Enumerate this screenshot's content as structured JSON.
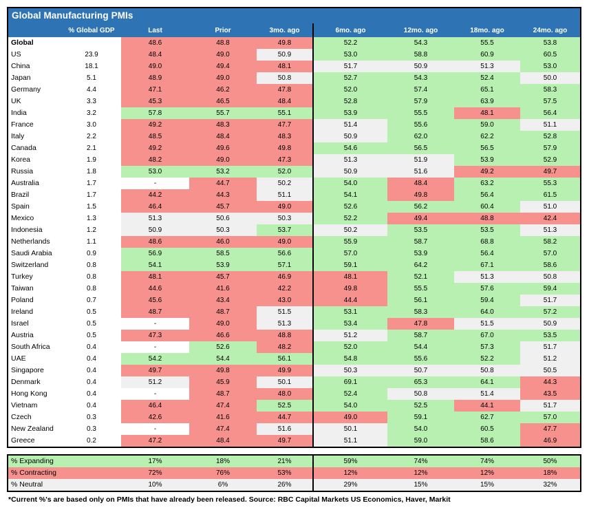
{
  "colors": {
    "header_blue": "#2e74b5",
    "expanding_green": "#b7f0b1",
    "contracting_red": "#f7918e",
    "neutral_gray": "#f0f0f0",
    "no_data_white": "#ffffff",
    "border_black": "#000000",
    "header_text": "#ffffff"
  },
  "chart_data": {
    "type": "heatmap",
    "title": "Global Manufacturing PMIs",
    "header_cells": [
      "",
      "% Global GDP",
      "Last",
      "Prior",
      "3mo. ago",
      "6mo. ago",
      "12mo. ago",
      "18mo. ago",
      "24mo. ago"
    ],
    "thresholds": {
      "expanding_min": 52.0,
      "contracting_below": 50.0,
      "neutral_range": "50.0-51.9",
      "no_data_marker": "-"
    },
    "rows": [
      {
        "country": "Global",
        "gdp": "",
        "bold": true,
        "values": [
          "48.6",
          "48.8",
          "49.8",
          "52.2",
          "54.3",
          "55.5",
          "53.8"
        ]
      },
      {
        "country": "US",
        "gdp": "23.9",
        "values": [
          "48.4",
          "49.0",
          "50.9",
          "53.0",
          "58.8",
          "60.9",
          "60.5"
        ]
      },
      {
        "country": "China",
        "gdp": "18.1",
        "values": [
          "49.0",
          "49.4",
          "48.1",
          "51.7",
          "50.9",
          "51.3",
          "53.0"
        ]
      },
      {
        "country": "Japan",
        "gdp": "5.1",
        "values": [
          "48.9",
          "49.0",
          "50.8",
          "52.7",
          "54.3",
          "52.4",
          "50.0"
        ]
      },
      {
        "country": "Germany",
        "gdp": "4.4",
        "values": [
          "47.1",
          "46.2",
          "47.8",
          "52.0",
          "57.4",
          "65.1",
          "58.3"
        ]
      },
      {
        "country": "UK",
        "gdp": "3.3",
        "values": [
          "45.3",
          "46.5",
          "48.4",
          "52.8",
          "57.9",
          "63.9",
          "57.5"
        ]
      },
      {
        "country": "India",
        "gdp": "3.2",
        "values": [
          "57.8",
          "55.7",
          "55.1",
          "53.9",
          "55.5",
          "48.1",
          "56.4"
        ]
      },
      {
        "country": "France",
        "gdp": "3.0",
        "values": [
          "49.2",
          "48.3",
          "47.7",
          "51.4",
          "55.6",
          "59.0",
          "51.1"
        ]
      },
      {
        "country": "Italy",
        "gdp": "2.2",
        "values": [
          "48.5",
          "48.4",
          "48.3",
          "50.9",
          "62.0",
          "62.2",
          "52.8"
        ]
      },
      {
        "country": "Canada",
        "gdp": "2.1",
        "values": [
          "49.2",
          "49.6",
          "49.8",
          "54.6",
          "56.5",
          "56.5",
          "57.9"
        ]
      },
      {
        "country": "Korea",
        "gdp": "1.9",
        "values": [
          "48.2",
          "49.0",
          "47.3",
          "51.3",
          "51.9",
          "53.9",
          "52.9"
        ]
      },
      {
        "country": "Russia",
        "gdp": "1.8",
        "values": [
          "53.0",
          "53.2",
          "52.0",
          "50.9",
          "51.6",
          "49.2",
          "49.7"
        ]
      },
      {
        "country": "Australia",
        "gdp": "1.7",
        "values": [
          "-",
          "44.7",
          "50.2",
          "54.0",
          "48.4",
          "63.2",
          "55.3"
        ]
      },
      {
        "country": "Brazil",
        "gdp": "1.7",
        "values": [
          "44.2",
          "44.3",
          "51.1",
          "54.1",
          "49.8",
          "56.4",
          "61.5"
        ]
      },
      {
        "country": "Spain",
        "gdp": "1.5",
        "values": [
          "46.4",
          "45.7",
          "49.0",
          "52.6",
          "56.2",
          "60.4",
          "51.0"
        ]
      },
      {
        "country": "Mexico",
        "gdp": "1.3",
        "values": [
          "51.3",
          "50.6",
          "50.3",
          "52.2",
          "49.4",
          "48.8",
          "42.4"
        ]
      },
      {
        "country": "Indonesia",
        "gdp": "1.2",
        "values": [
          "50.9",
          "50.3",
          "53.7",
          "50.2",
          "53.5",
          "53.5",
          "51.3"
        ]
      },
      {
        "country": "Netherlands",
        "gdp": "1.1",
        "values": [
          "48.6",
          "46.0",
          "49.0",
          "55.9",
          "58.7",
          "68.8",
          "58.2"
        ]
      },
      {
        "country": "Saudi Arabia",
        "gdp": "0.9",
        "values": [
          "56.9",
          "58.5",
          "56.6",
          "57.0",
          "53.9",
          "56.4",
          "57.0"
        ]
      },
      {
        "country": "Switzerland",
        "gdp": "0.8",
        "values": [
          "54.1",
          "53.9",
          "57.1",
          "59.1",
          "64.2",
          "67.1",
          "58.6"
        ]
      },
      {
        "country": "Turkey",
        "gdp": "0.8",
        "values": [
          "48.1",
          "45.7",
          "46.9",
          "48.1",
          "52.1",
          "51.3",
          "50.8"
        ]
      },
      {
        "country": "Taiwan",
        "gdp": "0.8",
        "values": [
          "44.6",
          "41.6",
          "42.2",
          "49.8",
          "55.5",
          "57.6",
          "59.4"
        ]
      },
      {
        "country": "Poland",
        "gdp": "0.7",
        "values": [
          "45.6",
          "43.4",
          "43.0",
          "44.4",
          "56.1",
          "59.4",
          "51.7"
        ]
      },
      {
        "country": "Ireland",
        "gdp": "0.5",
        "values": [
          "48.7",
          "48.7",
          "51.5",
          "53.1",
          "58.3",
          "64.0",
          "57.2"
        ]
      },
      {
        "country": "Israel",
        "gdp": "0.5",
        "values": [
          "-",
          "49.0",
          "51.3",
          "53.4",
          "47.8",
          "51.5",
          "50.9"
        ]
      },
      {
        "country": "Austria",
        "gdp": "0.5",
        "values": [
          "47.3",
          "46.6",
          "48.8",
          "51.2",
          "58.7",
          "67.0",
          "53.5"
        ]
      },
      {
        "country": "South Africa",
        "gdp": "0.4",
        "values": [
          "-",
          "52.6",
          "48.2",
          "52.0",
          "54.4",
          "57.3",
          "51.7"
        ]
      },
      {
        "country": "UAE",
        "gdp": "0.4",
        "values": [
          "54.2",
          "54.4",
          "56.1",
          "54.8",
          "55.6",
          "52.2",
          "51.2"
        ]
      },
      {
        "country": "Singapore",
        "gdp": "0.4",
        "values": [
          "49.7",
          "49.8",
          "49.9",
          "50.3",
          "50.7",
          "50.8",
          "50.5"
        ]
      },
      {
        "country": "Denmark",
        "gdp": "0.4",
        "values": [
          "51.2",
          "45.9",
          "50.1",
          "69.1",
          "65.3",
          "64.1",
          "44.3"
        ]
      },
      {
        "country": "Hong Kong",
        "gdp": "0.4",
        "values": [
          "-",
          "48.7",
          "48.0",
          "52.4",
          "50.8",
          "51.4",
          "43.5"
        ]
      },
      {
        "country": "Vietnam",
        "gdp": "0.4",
        "values": [
          "46.4",
          "47.4",
          "52.5",
          "54.0",
          "52.5",
          "44.1",
          "51.7"
        ]
      },
      {
        "country": "Czech",
        "gdp": "0.3",
        "values": [
          "42.6",
          "41.6",
          "44.7",
          "49.0",
          "59.1",
          "62.7",
          "57.0"
        ]
      },
      {
        "country": "New Zealand",
        "gdp": "0.3",
        "values": [
          "-",
          "47.4",
          "51.6",
          "50.1",
          "54.0",
          "60.5",
          "47.7"
        ]
      },
      {
        "country": "Greece",
        "gdp": "0.2",
        "values": [
          "47.2",
          "48.4",
          "49.7",
          "51.1",
          "59.0",
          "58.6",
          "46.9"
        ]
      }
    ],
    "summary_rows": [
      {
        "label": "% Expanding",
        "type": "expanding",
        "values": [
          "17%",
          "18%",
          "21%",
          "59%",
          "74%",
          "74%",
          "50%"
        ]
      },
      {
        "label": "% Contracting",
        "type": "contracting",
        "values": [
          "72%",
          "76%",
          "53%",
          "12%",
          "12%",
          "12%",
          "18%"
        ]
      },
      {
        "label": "% Neutral",
        "type": "neutral",
        "values": [
          "10%",
          "6%",
          "26%",
          "29%",
          "15%",
          "15%",
          "32%"
        ]
      }
    ],
    "footnote": "*Current %'s are based only on PMIs that have already been released. Source: RBC Capital Markets US Economics, Haver, Markit"
  }
}
